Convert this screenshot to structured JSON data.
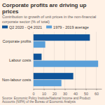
{
  "chart_data": {
    "type": "bar",
    "orientation": "horizontal",
    "title": "Corporate profits are driving up prices",
    "subtitle": "Contribution to growth of unit prices in the non-financial corporate sector (% of total)",
    "categories": [
      "Corporate profits",
      "Labour costs",
      "Non-labour costs"
    ],
    "series": [
      {
        "name": "Q2 2020 - Q4 2021",
        "color": "#0f5499",
        "values": [
          53.9,
          7.9,
          38.1
        ]
      },
      {
        "name": "1979 - 2019 average",
        "color": "#5a9fd8",
        "values": [
          11.4,
          61.8,
          26.8
        ]
      }
    ],
    "xlim": [
      0,
      65
    ],
    "xticks": [
      0,
      10,
      20,
      30,
      40,
      50,
      60
    ],
    "grid": true,
    "legend": "top-left",
    "source": "Source: Economic Policy Institute/National Income and Product Accounts (NIPA) of the Bureau of Economic Analysis"
  }
}
